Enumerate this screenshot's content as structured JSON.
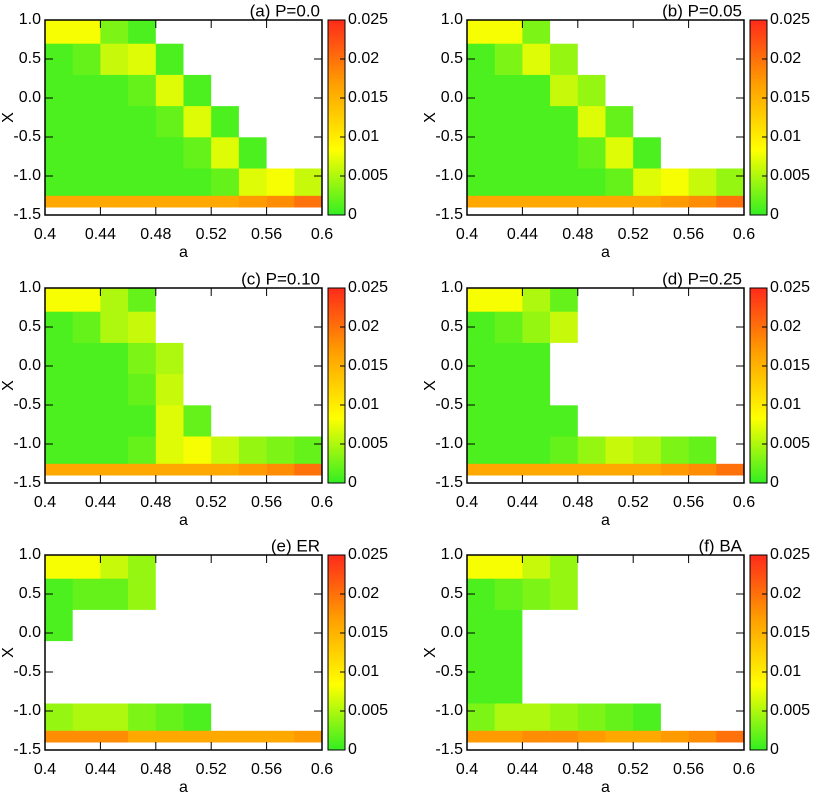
{
  "chart_data": [
    {
      "type": "heatmap",
      "title": "(a) P=0.0",
      "xlabel": "a",
      "ylabel": "X",
      "xlim": [
        0.4,
        0.6
      ],
      "ylim": [
        -1.5,
        1.0
      ],
      "xticks": [
        0.4,
        0.44,
        0.48,
        0.52,
        0.56,
        0.6
      ],
      "yticks": [
        {
          "value": 1.0,
          "label": "1.0"
        },
        {
          "value": 0.5,
          "label": "0.5"
        },
        {
          "value": 0.0,
          "label": "0.0"
        },
        {
          "value": -0.5,
          "label": "-0.5"
        },
        {
          "value": -1.0,
          "label": "-1.0"
        },
        {
          "value": -1.5,
          "label": "-1.5"
        }
      ],
      "clim": [
        0,
        0.025
      ],
      "cticks": [
        0,
        0.005,
        0.01,
        0.015,
        0.02,
        0.025
      ],
      "colormap": [
        "#33ee22",
        "#ffff00",
        "#ffa000",
        "#ff2a1a"
      ],
      "xbins": [
        0.4,
        0.42,
        0.44,
        0.46,
        0.48,
        0.5,
        0.52,
        0.54,
        0.56,
        0.58,
        0.6
      ],
      "ybins": [
        -1.4,
        -1.25,
        -0.9,
        -0.5,
        -0.1,
        0.3,
        0.7,
        1.0
      ],
      "z": [
        [
          0.016,
          0.016,
          0.016,
          0.016,
          0.016,
          0.016,
          0.016,
          0.017,
          0.018,
          0.02
        ],
        [
          0.001,
          0.001,
          0.001,
          0.001,
          0.001,
          0.001,
          0.002,
          0.007,
          0.008,
          0.006
        ],
        [
          0.001,
          0.001,
          0.001,
          0.001,
          0.001,
          0.002,
          0.007,
          0.001,
          0,
          0
        ],
        [
          0.001,
          0.001,
          0.001,
          0.001,
          0.002,
          0.007,
          0.001,
          0,
          0,
          0
        ],
        [
          0.001,
          0.001,
          0.001,
          0.002,
          0.007,
          0.001,
          0,
          0,
          0,
          0
        ],
        [
          0.001,
          0.002,
          0.006,
          0.007,
          0.001,
          0,
          0,
          0,
          0,
          0
        ],
        [
          0.008,
          0.008,
          0.003,
          0.001,
          0,
          0,
          0,
          0,
          0,
          0
        ]
      ]
    },
    {
      "type": "heatmap",
      "title": "(b) P=0.05",
      "xlabel": "a",
      "ylabel": "X",
      "xlim": [
        0.4,
        0.6
      ],
      "ylim": [
        -1.5,
        1.0
      ],
      "xticks": [
        0.4,
        0.44,
        0.48,
        0.52,
        0.56,
        0.6
      ],
      "yticks": [
        {
          "value": 1.0,
          "label": "1.0"
        },
        {
          "value": 0.5,
          "label": "0.5"
        },
        {
          "value": 0.0,
          "label": "0.0"
        },
        {
          "value": -0.5,
          "label": "-0.5"
        },
        {
          "value": -1.0,
          "label": "-1.0"
        },
        {
          "value": -1.5,
          "label": "-1.5"
        }
      ],
      "clim": [
        0,
        0.025
      ],
      "cticks": [
        0,
        0.005,
        0.01,
        0.015,
        0.02,
        0.025
      ],
      "colormap": [
        "#33ee22",
        "#ffff00",
        "#ffa000",
        "#ff2a1a"
      ],
      "xbins": [
        0.4,
        0.42,
        0.44,
        0.46,
        0.48,
        0.5,
        0.52,
        0.54,
        0.56,
        0.58,
        0.6
      ],
      "ybins": [
        -1.4,
        -1.25,
        -0.9,
        -0.5,
        -0.1,
        0.3,
        0.7,
        1.0
      ],
      "z": [
        [
          0.016,
          0.016,
          0.016,
          0.016,
          0.016,
          0.016,
          0.016,
          0.017,
          0.018,
          0.02
        ],
        [
          0.001,
          0.001,
          0.001,
          0.001,
          0.001,
          0.002,
          0.007,
          0.008,
          0.006,
          0.004
        ],
        [
          0.001,
          0.001,
          0.001,
          0.001,
          0.002,
          0.007,
          0.001,
          0,
          0,
          0
        ],
        [
          0.001,
          0.001,
          0.001,
          0.001,
          0.007,
          0.002,
          0,
          0,
          0,
          0
        ],
        [
          0.001,
          0.001,
          0.001,
          0.006,
          0.004,
          0,
          0,
          0,
          0,
          0
        ],
        [
          0.001,
          0.003,
          0.007,
          0.004,
          0,
          0,
          0,
          0,
          0,
          0
        ],
        [
          0.008,
          0.008,
          0.003,
          0,
          0,
          0,
          0,
          0,
          0,
          0
        ]
      ]
    },
    {
      "type": "heatmap",
      "title": "(c) P=0.10",
      "xlabel": "a",
      "ylabel": "X",
      "xlim": [
        0.4,
        0.6
      ],
      "ylim": [
        -1.5,
        1.0
      ],
      "xticks": [
        0.4,
        0.44,
        0.48,
        0.52,
        0.56,
        0.6
      ],
      "yticks": [
        {
          "value": 1.0,
          "label": "1.0"
        },
        {
          "value": 0.5,
          "label": "0.5"
        },
        {
          "value": 0.0,
          "label": "0.0"
        },
        {
          "value": -0.5,
          "label": "-0.5"
        },
        {
          "value": -1.0,
          "label": "-1.0"
        },
        {
          "value": -1.5,
          "label": "-1.5"
        }
      ],
      "clim": [
        0,
        0.025
      ],
      "cticks": [
        0,
        0.005,
        0.01,
        0.015,
        0.02,
        0.025
      ],
      "colormap": [
        "#33ee22",
        "#ffff00",
        "#ffa000",
        "#ff2a1a"
      ],
      "xbins": [
        0.4,
        0.42,
        0.44,
        0.46,
        0.48,
        0.5,
        0.52,
        0.54,
        0.56,
        0.58,
        0.6
      ],
      "ybins": [
        -1.4,
        -1.25,
        -0.9,
        -0.5,
        -0.1,
        0.3,
        0.7,
        1.0
      ],
      "z": [
        [
          0.016,
          0.016,
          0.016,
          0.016,
          0.016,
          0.016,
          0.016,
          0.017,
          0.018,
          0.02
        ],
        [
          0.001,
          0.001,
          0.001,
          0.002,
          0.007,
          0.008,
          0.006,
          0.004,
          0.003,
          0.002
        ],
        [
          0.001,
          0.001,
          0.001,
          0.001,
          0.007,
          0.002,
          0,
          0,
          0,
          0
        ],
        [
          0.001,
          0.001,
          0.001,
          0.002,
          0.006,
          0,
          0,
          0,
          0,
          0
        ],
        [
          0.001,
          0.001,
          0.001,
          0.003,
          0.005,
          0,
          0,
          0,
          0,
          0
        ],
        [
          0.001,
          0.002,
          0.005,
          0.006,
          0,
          0,
          0,
          0,
          0,
          0
        ],
        [
          0.008,
          0.008,
          0.005,
          0.002,
          0,
          0,
          0,
          0,
          0,
          0
        ]
      ]
    },
    {
      "type": "heatmap",
      "title": "(d) P=0.25",
      "xlabel": "a",
      "ylabel": "X",
      "xlim": [
        0.4,
        0.6
      ],
      "ylim": [
        -1.5,
        1.0
      ],
      "xticks": [
        0.4,
        0.44,
        0.48,
        0.52,
        0.56,
        0.6
      ],
      "yticks": [
        {
          "value": 1.0,
          "label": "1.0"
        },
        {
          "value": 0.5,
          "label": "0.5"
        },
        {
          "value": 0.0,
          "label": "0.0"
        },
        {
          "value": -0.5,
          "label": "-0.5"
        },
        {
          "value": -1.0,
          "label": "-1.0"
        },
        {
          "value": -1.5,
          "label": "-1.5"
        }
      ],
      "clim": [
        0,
        0.025
      ],
      "cticks": [
        0,
        0.005,
        0.01,
        0.015,
        0.02,
        0.025
      ],
      "colormap": [
        "#33ee22",
        "#ffff00",
        "#ffa000",
        "#ff2a1a"
      ],
      "xbins": [
        0.4,
        0.42,
        0.44,
        0.46,
        0.48,
        0.5,
        0.52,
        0.54,
        0.56,
        0.58,
        0.6
      ],
      "ybins": [
        -1.4,
        -1.25,
        -0.9,
        -0.5,
        -0.1,
        0.3,
        0.7,
        1.0
      ],
      "z": [
        [
          0.016,
          0.016,
          0.016,
          0.016,
          0.016,
          0.016,
          0.016,
          0.017,
          0.018,
          0.02
        ],
        [
          0.001,
          0.001,
          0.001,
          0.002,
          0.004,
          0.006,
          0.005,
          0.003,
          0.002,
          0
        ],
        [
          0.001,
          0.001,
          0.001,
          0.001,
          0,
          0,
          0,
          0,
          0,
          0
        ],
        [
          0.001,
          0.001,
          0.001,
          0,
          0,
          0,
          0,
          0,
          0,
          0
        ],
        [
          0.001,
          0.001,
          0.001,
          0,
          0,
          0,
          0,
          0,
          0,
          0
        ],
        [
          0.001,
          0.002,
          0.004,
          0.006,
          0,
          0,
          0,
          0,
          0,
          0
        ],
        [
          0.008,
          0.008,
          0.005,
          0.002,
          0,
          0,
          0,
          0,
          0,
          0
        ]
      ]
    },
    {
      "type": "heatmap",
      "title": "(e) ER",
      "xlabel": "a",
      "ylabel": "X",
      "xlim": [
        0.4,
        0.6
      ],
      "ylim": [
        -1.5,
        1.0
      ],
      "xticks": [
        0.4,
        0.44,
        0.48,
        0.52,
        0.56,
        0.6
      ],
      "yticks": [
        {
          "value": 1.0,
          "label": "1.0"
        },
        {
          "value": 0.5,
          "label": "0.5"
        },
        {
          "value": 0.0,
          "label": "0.0"
        },
        {
          "value": -0.5,
          "label": "-0.5"
        },
        {
          "value": -1.0,
          "label": "-1.0"
        },
        {
          "value": -1.5,
          "label": "-1.5"
        }
      ],
      "clim": [
        0,
        0.025
      ],
      "cticks": [
        0,
        0.005,
        0.01,
        0.015,
        0.02,
        0.025
      ],
      "colormap": [
        "#33ee22",
        "#ffff00",
        "#ffa000",
        "#ff2a1a"
      ],
      "xbins": [
        0.4,
        0.42,
        0.44,
        0.46,
        0.48,
        0.5,
        0.52,
        0.54,
        0.56,
        0.58,
        0.6
      ],
      "ybins": [
        -1.4,
        -1.25,
        -0.9,
        -0.5,
        -0.1,
        0.3,
        0.7,
        1.0
      ],
      "z": [
        [
          0.018,
          0.018,
          0.018,
          0.016,
          0.016,
          0.016,
          0.016,
          0.016,
          0.016,
          0.017
        ],
        [
          0.004,
          0.005,
          0.005,
          0.003,
          0.002,
          0.001,
          0,
          0,
          0,
          0
        ],
        [
          0,
          0,
          0,
          0,
          0,
          0,
          0,
          0,
          0,
          0
        ],
        [
          0,
          0,
          0,
          0,
          0,
          0,
          0,
          0,
          0,
          0
        ],
        [
          0.001,
          0,
          0,
          0,
          0,
          0,
          0,
          0,
          0,
          0
        ],
        [
          0.001,
          0.002,
          0.002,
          0.004,
          0,
          0,
          0,
          0,
          0,
          0
        ],
        [
          0.008,
          0.008,
          0.006,
          0.004,
          0,
          0,
          0,
          0,
          0,
          0
        ]
      ]
    },
    {
      "type": "heatmap",
      "title": "(f) BA",
      "xlabel": "a",
      "ylabel": "X",
      "xlim": [
        0.4,
        0.6
      ],
      "ylim": [
        -1.5,
        1.0
      ],
      "xticks": [
        0.4,
        0.44,
        0.48,
        0.52,
        0.56,
        0.6
      ],
      "yticks": [
        {
          "value": 1.0,
          "label": "1.0"
        },
        {
          "value": 0.5,
          "label": "0.5"
        },
        {
          "value": 0.0,
          "label": "0.0"
        },
        {
          "value": -0.5,
          "label": "-0.5"
        },
        {
          "value": -1.0,
          "label": "-1.0"
        },
        {
          "value": -1.5,
          "label": "-1.5"
        }
      ],
      "clim": [
        0,
        0.025
      ],
      "cticks": [
        0,
        0.005,
        0.01,
        0.015,
        0.02,
        0.025
      ],
      "colormap": [
        "#33ee22",
        "#ffff00",
        "#ffa000",
        "#ff2a1a"
      ],
      "xbins": [
        0.4,
        0.42,
        0.44,
        0.46,
        0.48,
        0.5,
        0.52,
        0.54,
        0.56,
        0.58,
        0.6
      ],
      "ybins": [
        -1.4,
        -1.25,
        -0.9,
        -0.5,
        -0.1,
        0.3,
        0.7,
        1.0
      ],
      "z": [
        [
          0.017,
          0.017,
          0.018,
          0.018,
          0.017,
          0.016,
          0.016,
          0.017,
          0.018,
          0.02
        ],
        [
          0.003,
          0.005,
          0.005,
          0.004,
          0.003,
          0.002,
          0.001,
          0,
          0,
          0
        ],
        [
          0.001,
          0.001,
          0,
          0,
          0,
          0,
          0,
          0,
          0,
          0
        ],
        [
          0.001,
          0.001,
          0,
          0,
          0,
          0,
          0,
          0,
          0,
          0
        ],
        [
          0.001,
          0.001,
          0,
          0,
          0,
          0,
          0,
          0,
          0,
          0
        ],
        [
          0.001,
          0.002,
          0.003,
          0.004,
          0,
          0,
          0,
          0,
          0,
          0
        ],
        [
          0.008,
          0.008,
          0.006,
          0.004,
          0,
          0,
          0,
          0,
          0,
          0
        ]
      ]
    }
  ]
}
